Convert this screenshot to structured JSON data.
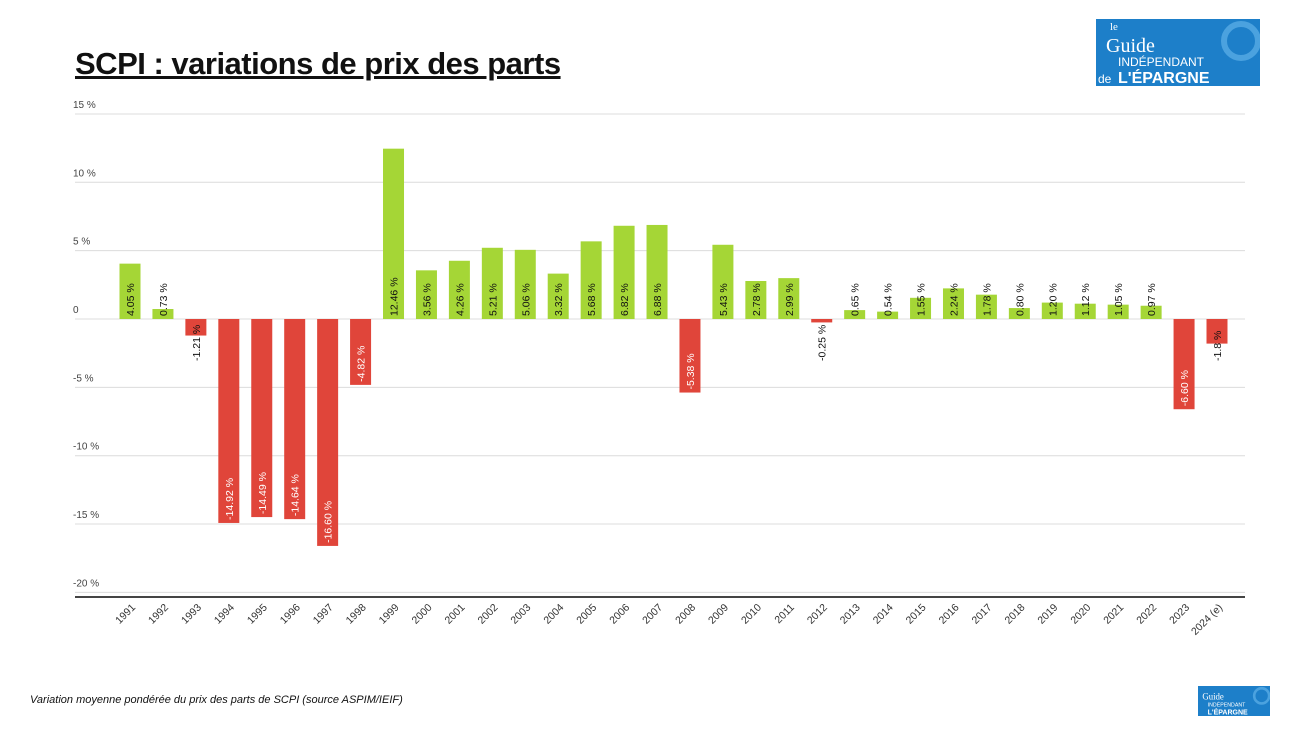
{
  "header": {
    "title": "SCPI : variations de prix des parts"
  },
  "footer": {
    "caption": "Variation moyenne pondérée du prix des parts de SCPI (source ASPIM/IEIF)"
  },
  "logo": {
    "text": "le Guide INDÉPENDANT de L'ÉPARGNE",
    "brand_color": "#1d7fc9"
  },
  "chart_data": {
    "type": "bar",
    "title": "SCPI : variations de prix des parts",
    "categories": [
      "1991",
      "1992",
      "1993",
      "1994",
      "1995",
      "1996",
      "1997",
      "1998",
      "1999",
      "2000",
      "2001",
      "2002",
      "2003",
      "2004",
      "2005",
      "2006",
      "2007",
      "2008",
      "2009",
      "2010",
      "2011",
      "2012",
      "2013",
      "2014",
      "2015",
      "2016",
      "2017",
      "2018",
      "2019",
      "2020",
      "2021",
      "2022",
      "2023",
      "2024 (e)"
    ],
    "values": [
      4.05,
      0.73,
      -1.21,
      -14.92,
      -14.49,
      -14.64,
      -16.6,
      -4.82,
      12.46,
      3.56,
      4.26,
      5.21,
      5.06,
      3.32,
      5.68,
      6.82,
      6.88,
      -5.38,
      5.43,
      2.78,
      2.99,
      -0.25,
      0.65,
      0.54,
      1.55,
      2.24,
      1.78,
      0.8,
      1.2,
      1.12,
      1.05,
      0.97,
      -6.6,
      -1.8
    ],
    "data_labels": [
      "4.05 %",
      "0.73 %",
      "-1.21 %",
      "-14.92 %",
      "-14.49 %",
      "-14.64 %",
      "-16.60 %",
      "-4.82 %",
      "12.46 %",
      "3.56 %",
      "4.26 %",
      "5.21 %",
      "5.06 %",
      "3.32 %",
      "5.68 %",
      "6.82 %",
      "6.88 %",
      "-5.38 %",
      "5.43 %",
      "2.78 %",
      "2.99 %",
      "-0.25 %",
      "0.65 %",
      "0.54 %",
      "1.55 %",
      "2.24 %",
      "1.78 %",
      "0.80 %",
      "1.20 %",
      "1.12 %",
      "1.05 %",
      "0.97 %",
      "-6.60 %",
      "-1.8 %"
    ],
    "yticks": [
      15,
      10,
      5,
      0,
      -5,
      -10,
      -15,
      -20
    ],
    "ytick_labels": [
      "15 %",
      "10 %",
      "5 %",
      "0",
      "-5 %",
      "-10 %",
      "-15 %",
      "-20 %"
    ],
    "ylim": [
      -20,
      15
    ],
    "grid": true,
    "colors": {
      "positive": "#a5d636",
      "negative": "#e0453a"
    },
    "xlabel": "",
    "ylabel": ""
  }
}
